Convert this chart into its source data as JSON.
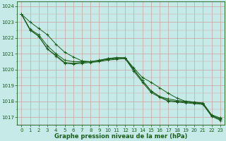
{
  "title": "Graphe pression niveau de la mer (hPa)",
  "background_color": "#c5eae7",
  "grid_major_color": "#d0a0a0",
  "grid_minor_color": "#d0a0a0",
  "line_color": "#1a5c1a",
  "xlim": [
    -0.5,
    23.5
  ],
  "ylim": [
    1016.5,
    1024.3
  ],
  "yticks": [
    1017,
    1018,
    1019,
    1020,
    1021,
    1022,
    1023,
    1024
  ],
  "xticks": [
    0,
    1,
    2,
    3,
    4,
    5,
    6,
    7,
    8,
    9,
    10,
    11,
    12,
    13,
    14,
    15,
    16,
    17,
    18,
    19,
    20,
    21,
    22,
    23
  ],
  "series": [
    [
      1023.5,
      1023.0,
      1022.6,
      1022.2,
      1021.6,
      1021.1,
      1020.8,
      1020.55,
      1020.5,
      1020.55,
      1020.7,
      1020.75,
      1020.75,
      1020.1,
      1019.5,
      1019.2,
      1018.85,
      1018.5,
      1018.2,
      1018.0,
      1017.95,
      1017.9,
      1017.15,
      1016.95
    ],
    [
      1023.5,
      1022.55,
      1022.2,
      1021.5,
      1021.0,
      1020.6,
      1020.5,
      1020.5,
      1020.5,
      1020.6,
      1020.7,
      1020.75,
      1020.75,
      1020.0,
      1019.3,
      1018.65,
      1018.3,
      1018.15,
      1018.05,
      1018.0,
      1017.95,
      1017.85,
      1017.1,
      1016.9
    ],
    [
      1023.5,
      1022.5,
      1022.1,
      1021.3,
      1020.9,
      1020.45,
      1020.4,
      1020.45,
      1020.5,
      1020.55,
      1020.65,
      1020.7,
      1020.7,
      1020.0,
      1019.3,
      1018.65,
      1018.3,
      1018.05,
      1018.0,
      1017.95,
      1017.9,
      1017.85,
      1017.1,
      1016.85
    ],
    [
      1023.5,
      1022.5,
      1022.1,
      1021.3,
      1020.85,
      1020.4,
      1020.35,
      1020.4,
      1020.45,
      1020.5,
      1020.6,
      1020.65,
      1020.7,
      1019.9,
      1019.2,
      1018.55,
      1018.25,
      1018.0,
      1017.95,
      1017.9,
      1017.85,
      1017.8,
      1017.05,
      1016.8
    ]
  ],
  "tick_fontsize": 5,
  "label_fontsize": 6,
  "figsize": [
    3.2,
    2.0
  ],
  "dpi": 100
}
